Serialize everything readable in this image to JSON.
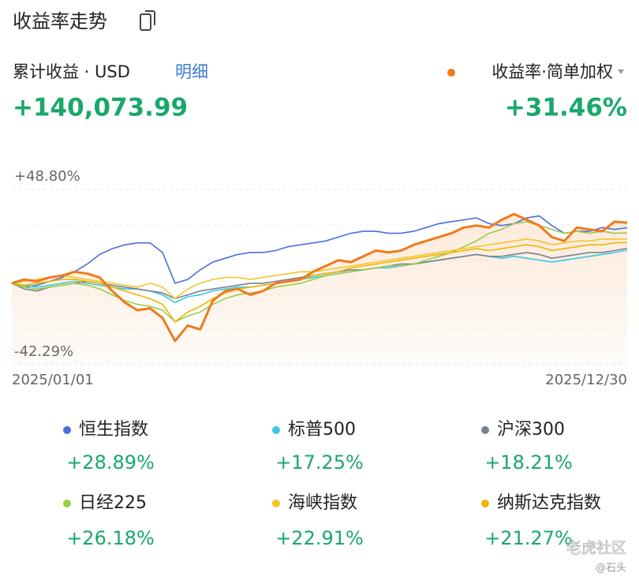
{
  "header": {
    "title": "收益率走势",
    "subtitle": "累计收益 · USD",
    "link": "明细",
    "total": "+140,073.99"
  },
  "watermark": [
    "老虎社区",
    "@石头"
  ],
  "chart_data": {
    "type": "line",
    "categories": [
      "2025/01/01",
      null,
      null,
      null,
      null,
      null,
      null,
      null,
      null,
      null,
      null,
      null,
      null,
      null,
      null,
      null,
      null,
      null,
      null,
      null,
      null,
      null,
      null,
      null,
      null,
      null,
      null,
      null,
      null,
      null,
      null,
      null,
      null,
      null,
      null,
      null,
      null,
      null,
      null,
      null,
      null,
      null,
      null,
      null,
      null,
      null,
      null,
      null,
      null,
      "2025/12/30"
    ],
    "ylim": [
      -42.29,
      48.8
    ],
    "yticks": [
      {
        "value": -42.29,
        "label": "-42.29%"
      },
      {
        "value": 48.8,
        "label": "+48.80%"
      }
    ],
    "series": [
      {
        "name": "恒生指数",
        "color": "#4a6fdc",
        "values": [
          0,
          -2,
          -1,
          1,
          3,
          6,
          10,
          15,
          18,
          20,
          21,
          21,
          16,
          0,
          2,
          7,
          11,
          13,
          15,
          16,
          16,
          17,
          19,
          20,
          21,
          22,
          24,
          26,
          27,
          27,
          26,
          26,
          27,
          29,
          31,
          32,
          33,
          34,
          31,
          30,
          31,
          34,
          35,
          30,
          26,
          27,
          27,
          29,
          28,
          28.89
        ],
        "value_labels": [
          null,
          null,
          null,
          null,
          null,
          null,
          null,
          null,
          null,
          null,
          null,
          null,
          null,
          null,
          null,
          null,
          null,
          null,
          null,
          null,
          null,
          null,
          null,
          null,
          null,
          null,
          null,
          null,
          null,
          null,
          null,
          null,
          null,
          null,
          null,
          null,
          null,
          null,
          null,
          null,
          null,
          null,
          null,
          null,
          null,
          null,
          null,
          null,
          null,
          "+28.89%"
        ]
      },
      {
        "name": "标普500",
        "color": "#3cc8e0",
        "values": [
          0,
          -1,
          -2,
          -1,
          0,
          1,
          0,
          -1,
          -2,
          -3,
          -3,
          -4,
          -6,
          -10,
          -7,
          -6,
          -4,
          -3,
          -2,
          -2,
          -1,
          0,
          1,
          2,
          3,
          4,
          5,
          6,
          7,
          8,
          8,
          9,
          10,
          11,
          12,
          13,
          14,
          15,
          14,
          13,
          14,
          13,
          12,
          11,
          12,
          13,
          14,
          15,
          16,
          17.25
        ],
        "value_labels": [
          null,
          null,
          null,
          null,
          null,
          null,
          null,
          null,
          null,
          null,
          null,
          null,
          null,
          null,
          null,
          null,
          null,
          null,
          null,
          null,
          null,
          null,
          null,
          null,
          null,
          null,
          null,
          null,
          null,
          null,
          null,
          null,
          null,
          null,
          null,
          null,
          null,
          null,
          null,
          null,
          null,
          null,
          null,
          null,
          null,
          null,
          null,
          null,
          null,
          "+17.25%"
        ]
      },
      {
        "name": "沪深300",
        "color": "#7a8290",
        "values": [
          0,
          -3,
          -4,
          -2,
          -1,
          0,
          1,
          0,
          -1,
          -2,
          -3,
          -4,
          -5,
          -8,
          -6,
          -4,
          -3,
          -2,
          -1,
          0,
          0,
          1,
          2,
          3,
          4,
          5,
          6,
          7,
          7,
          8,
          9,
          10,
          10,
          11,
          12,
          13,
          14,
          15,
          14,
          14,
          15,
          16,
          15,
          13,
          14,
          15,
          16,
          16,
          17,
          18.21
        ],
        "value_labels": [
          null,
          null,
          null,
          null,
          null,
          null,
          null,
          null,
          null,
          null,
          null,
          null,
          null,
          null,
          null,
          null,
          null,
          null,
          null,
          null,
          null,
          null,
          null,
          null,
          null,
          null,
          null,
          null,
          null,
          null,
          null,
          null,
          null,
          null,
          null,
          null,
          null,
          null,
          null,
          null,
          null,
          null,
          null,
          null,
          null,
          null,
          null,
          null,
          null,
          "+18.21%"
        ]
      },
      {
        "name": "日经225",
        "color": "#9acd4a",
        "values": [
          0,
          -2,
          -3,
          -2,
          -1,
          0,
          -1,
          -3,
          -6,
          -9,
          -11,
          -12,
          -14,
          -20,
          -17,
          -15,
          -11,
          -8,
          -6,
          -5,
          -4,
          -2,
          -1,
          0,
          2,
          4,
          5,
          6,
          7,
          8,
          9,
          9,
          10,
          12,
          14,
          16,
          19,
          22,
          26,
          28,
          31,
          32,
          30,
          28,
          26,
          27,
          26,
          27,
          26,
          26.18
        ],
        "value_labels": [
          null,
          null,
          null,
          null,
          null,
          null,
          null,
          null,
          null,
          null,
          null,
          null,
          null,
          null,
          null,
          null,
          null,
          null,
          null,
          null,
          null,
          null,
          null,
          null,
          null,
          null,
          null,
          null,
          null,
          null,
          null,
          null,
          null,
          null,
          null,
          null,
          null,
          null,
          null,
          null,
          null,
          null,
          null,
          null,
          null,
          null,
          null,
          null,
          null,
          "+26.18%"
        ]
      },
      {
        "name": "海峡指数",
        "color": "#f5c52a",
        "values": [
          0,
          1,
          2,
          3,
          4,
          3,
          2,
          1,
          0,
          -1,
          -2,
          0,
          -2,
          -8,
          -3,
          0,
          2,
          3,
          3,
          2,
          3,
          4,
          5,
          6,
          6,
          7,
          8,
          9,
          10,
          11,
          12,
          13,
          14,
          15,
          16,
          17,
          18,
          19,
          20,
          21,
          22,
          23,
          22,
          20,
          21,
          22,
          22,
          23,
          23,
          22.91
        ],
        "value_labels": [
          null,
          null,
          null,
          null,
          null,
          null,
          null,
          null,
          null,
          null,
          null,
          null,
          null,
          null,
          null,
          null,
          null,
          null,
          null,
          null,
          null,
          null,
          null,
          null,
          null,
          null,
          null,
          null,
          null,
          null,
          null,
          null,
          null,
          null,
          null,
          null,
          null,
          null,
          null,
          null,
          null,
          null,
          null,
          null,
          null,
          null,
          null,
          null,
          null,
          "+22.91%"
        ]
      },
      {
        "name": "纳斯达克指数",
        "color": "#f0b400",
        "values": [
          0,
          -1,
          0,
          1,
          2,
          2,
          1,
          0,
          -2,
          -4,
          -6,
          -8,
          -11,
          -20,
          -15,
          -12,
          -8,
          -5,
          -3,
          -2,
          -1,
          0,
          1,
          2,
          4,
          5,
          6,
          8,
          9,
          10,
          11,
          12,
          13,
          14,
          15,
          16,
          17,
          18,
          17,
          18,
          19,
          20,
          19,
          17,
          18,
          19,
          20,
          20,
          21,
          21.27
        ],
        "value_labels": [
          null,
          null,
          null,
          null,
          null,
          null,
          null,
          null,
          null,
          null,
          null,
          null,
          null,
          null,
          null,
          null,
          null,
          null,
          null,
          null,
          null,
          null,
          null,
          null,
          null,
          null,
          null,
          null,
          null,
          null,
          null,
          null,
          null,
          null,
          null,
          null,
          null,
          null,
          null,
          null,
          null,
          null,
          null,
          null,
          null,
          null,
          null,
          null,
          null,
          "+21.27%"
        ]
      },
      {
        "name": "收益率·简单加权",
        "color": "#f07a1a",
        "values": [
          0,
          2,
          1,
          3,
          4,
          6,
          5,
          3,
          -4,
          -10,
          -14,
          -13,
          -18,
          -30,
          -22,
          -24,
          -9,
          -4,
          -3,
          -6,
          -4,
          0,
          1,
          2,
          6,
          9,
          12,
          11,
          14,
          17,
          16,
          17,
          20,
          22,
          24,
          26,
          29,
          30,
          29,
          33,
          36,
          33,
          30,
          24,
          22,
          29,
          28,
          27,
          32,
          31.46
        ],
        "value_labels": [
          null,
          null,
          null,
          null,
          null,
          null,
          null,
          null,
          null,
          null,
          null,
          null,
          null,
          null,
          null,
          null,
          null,
          null,
          null,
          null,
          null,
          null,
          null,
          null,
          null,
          null,
          null,
          null,
          null,
          null,
          null,
          null,
          null,
          null,
          null,
          null,
          null,
          null,
          null,
          null,
          null,
          null,
          null,
          null,
          null,
          null,
          null,
          null,
          null,
          "+31.46%"
        ]
      }
    ]
  }
}
